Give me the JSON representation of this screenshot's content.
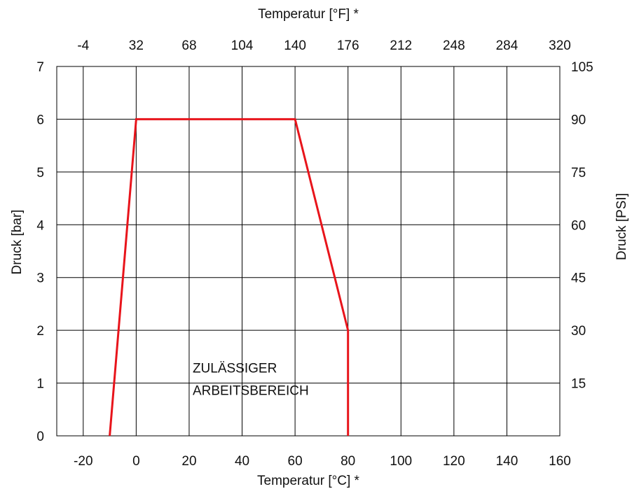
{
  "chart_data": {
    "type": "line",
    "xlabel": "Temperatur [°C] *",
    "x2label": "Temperatur [°F] *",
    "ylabel": "Druck [bar]",
    "y2label": "Druck [PSI]",
    "xlim": [
      -30,
      160
    ],
    "ylim": [
      0,
      7
    ],
    "x_ticks": [
      "-20",
      "0",
      "20",
      "40",
      "60",
      "80",
      "100",
      "120",
      "140",
      "160"
    ],
    "x2_ticks": [
      "-4",
      "32",
      "68",
      "104",
      "140",
      "176",
      "212",
      "248",
      "284",
      "320"
    ],
    "y_ticks": [
      "0",
      "1",
      "2",
      "3",
      "4",
      "5",
      "6",
      "7"
    ],
    "y2_ticks": [
      "15",
      "30",
      "45",
      "60",
      "75",
      "90",
      "105"
    ],
    "grid": true,
    "series": [
      {
        "color": "#e8141b",
        "x": [
          -10,
          0,
          60,
          80,
          80
        ],
        "y": [
          0,
          6,
          6,
          2,
          0
        ]
      }
    ],
    "annotation": {
      "lines": [
        "ZULÄSSIGER",
        "ARBEITSBEREICH"
      ],
      "x": 20,
      "y": 1.2
    }
  }
}
